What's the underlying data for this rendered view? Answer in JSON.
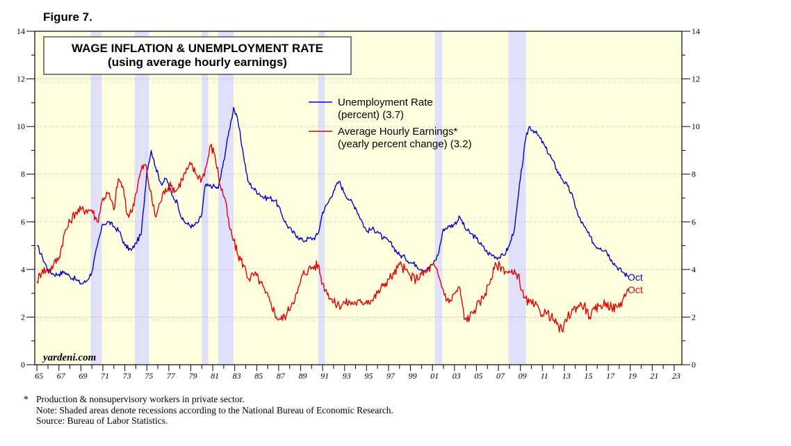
{
  "figure_label": "Figure 7.",
  "colors": {
    "background": "#ffffe0",
    "recession": "#e0e0fb",
    "unemployment": "#0000cc",
    "earnings": "#e60000"
  },
  "footnotes": {
    "asterisk": "*",
    "line1": "Production & nonsupervisory workers in private sector.",
    "line2": "Note: Shaded areas denote recessions according to the National Bureau of Economic Research.",
    "line3": "Source: Bureau of Labor Statistics."
  },
  "chart_data": {
    "type": "line",
    "title": "WAGE INFLATION & UNEMPLOYMENT RATE",
    "subtitle": "(using average hourly earnings)",
    "watermark": "yardeni.com",
    "xlim": [
      1964.8,
      2023.7
    ],
    "ylim": [
      0,
      14
    ],
    "x_ticks": [
      1965,
      1967,
      1969,
      1971,
      1973,
      1975,
      1977,
      1979,
      1981,
      1983,
      1985,
      1987,
      1989,
      1991,
      1993,
      1995,
      1997,
      1999,
      2001,
      2003,
      2005,
      2007,
      2009,
      2011,
      2013,
      2015,
      2017,
      2019,
      2021,
      2023
    ],
    "x_tick_labels": [
      "65",
      "67",
      "69",
      "71",
      "73",
      "75",
      "77",
      "79",
      "81",
      "83",
      "85",
      "87",
      "89",
      "91",
      "93",
      "95",
      "97",
      "99",
      "01",
      "03",
      "05",
      "07",
      "09",
      "11",
      "13",
      "15",
      "17",
      "19",
      "21",
      "23"
    ],
    "y_ticks": [
      0,
      2,
      4,
      6,
      8,
      10,
      12,
      14
    ],
    "y_tick_labels": [
      "0",
      "2",
      "4",
      "6",
      "8",
      "10",
      "12",
      "14"
    ],
    "right_y_tick_labels": [
      "0",
      "2",
      "4",
      "6",
      "8",
      "10",
      "12",
      "14"
    ],
    "recessions": [
      [
        1969.9,
        1970.9
      ],
      [
        1973.9,
        1975.2
      ],
      [
        1980.0,
        1980.6
      ],
      [
        1981.5,
        1982.9
      ],
      [
        1990.6,
        1991.2
      ],
      [
        2001.2,
        2001.9
      ],
      [
        2007.9,
        2009.5
      ]
    ],
    "series": [
      {
        "name": "Unemployment Rate",
        "legend_line1": "Unemployment Rate",
        "legend_line2": "(percent) (3.7)",
        "end_label": "Oct",
        "points": [
          [
            1965.0,
            5.0
          ],
          [
            1965.5,
            4.5
          ],
          [
            1966.0,
            4.0
          ],
          [
            1966.5,
            3.8
          ],
          [
            1967.0,
            3.8
          ],
          [
            1967.5,
            3.9
          ],
          [
            1968.0,
            3.7
          ],
          [
            1968.5,
            3.6
          ],
          [
            1969.0,
            3.4
          ],
          [
            1969.5,
            3.5
          ],
          [
            1970.0,
            3.9
          ],
          [
            1970.5,
            5.0
          ],
          [
            1971.0,
            5.9
          ],
          [
            1971.5,
            6.0
          ],
          [
            1972.0,
            5.8
          ],
          [
            1972.5,
            5.6
          ],
          [
            1973.0,
            5.0
          ],
          [
            1973.6,
            4.8
          ],
          [
            1974.0,
            5.1
          ],
          [
            1974.5,
            5.5
          ],
          [
            1975.0,
            8.1
          ],
          [
            1975.4,
            9.0
          ],
          [
            1975.8,
            8.3
          ],
          [
            1976.3,
            7.6
          ],
          [
            1976.8,
            7.8
          ],
          [
            1977.3,
            7.1
          ],
          [
            1977.8,
            6.8
          ],
          [
            1978.2,
            6.1
          ],
          [
            1978.7,
            5.9
          ],
          [
            1979.2,
            5.8
          ],
          [
            1979.7,
            6.0
          ],
          [
            1980.0,
            6.3
          ],
          [
            1980.3,
            7.5
          ],
          [
            1980.7,
            7.5
          ],
          [
            1981.0,
            7.5
          ],
          [
            1981.5,
            7.4
          ],
          [
            1981.9,
            8.3
          ],
          [
            1982.4,
            9.6
          ],
          [
            1982.9,
            10.8
          ],
          [
            1983.3,
            10.2
          ],
          [
            1983.8,
            8.8
          ],
          [
            1984.2,
            7.7
          ],
          [
            1984.7,
            7.4
          ],
          [
            1985.2,
            7.2
          ],
          [
            1985.7,
            7.0
          ],
          [
            1986.2,
            7.0
          ],
          [
            1986.7,
            6.9
          ],
          [
            1987.2,
            6.4
          ],
          [
            1987.7,
            5.9
          ],
          [
            1988.2,
            5.6
          ],
          [
            1988.7,
            5.4
          ],
          [
            1989.2,
            5.2
          ],
          [
            1989.7,
            5.3
          ],
          [
            1990.2,
            5.3
          ],
          [
            1990.6,
            5.5
          ],
          [
            1991.0,
            6.4
          ],
          [
            1991.5,
            6.8
          ],
          [
            1992.0,
            7.3
          ],
          [
            1992.5,
            7.7
          ],
          [
            1993.0,
            7.2
          ],
          [
            1993.5,
            6.9
          ],
          [
            1994.0,
            6.6
          ],
          [
            1994.5,
            6.1
          ],
          [
            1995.0,
            5.6
          ],
          [
            1995.5,
            5.7
          ],
          [
            1996.0,
            5.6
          ],
          [
            1996.5,
            5.3
          ],
          [
            1997.0,
            5.2
          ],
          [
            1997.5,
            4.9
          ],
          [
            1998.0,
            4.6
          ],
          [
            1998.5,
            4.5
          ],
          [
            1999.0,
            4.3
          ],
          [
            1999.5,
            4.2
          ],
          [
            2000.0,
            4.0
          ],
          [
            2000.5,
            4.0
          ],
          [
            2001.0,
            4.2
          ],
          [
            2001.5,
            4.6
          ],
          [
            2002.0,
            5.7
          ],
          [
            2002.5,
            5.8
          ],
          [
            2003.0,
            5.9
          ],
          [
            2003.5,
            6.2
          ],
          [
            2004.0,
            5.7
          ],
          [
            2004.5,
            5.5
          ],
          [
            2005.0,
            5.3
          ],
          [
            2005.5,
            5.0
          ],
          [
            2006.0,
            4.7
          ],
          [
            2006.5,
            4.6
          ],
          [
            2007.0,
            4.5
          ],
          [
            2007.5,
            4.6
          ],
          [
            2008.0,
            5.0
          ],
          [
            2008.5,
            5.8
          ],
          [
            2009.0,
            7.8
          ],
          [
            2009.5,
            9.5
          ],
          [
            2009.8,
            10.0
          ],
          [
            2010.3,
            9.8
          ],
          [
            2010.8,
            9.5
          ],
          [
            2011.3,
            9.1
          ],
          [
            2011.8,
            8.7
          ],
          [
            2012.3,
            8.2
          ],
          [
            2012.8,
            7.8
          ],
          [
            2013.3,
            7.5
          ],
          [
            2013.8,
            7.0
          ],
          [
            2014.3,
            6.2
          ],
          [
            2014.8,
            5.8
          ],
          [
            2015.3,
            5.4
          ],
          [
            2015.8,
            5.0
          ],
          [
            2016.3,
            4.9
          ],
          [
            2016.8,
            4.8
          ],
          [
            2017.3,
            4.4
          ],
          [
            2017.8,
            4.1
          ],
          [
            2018.3,
            3.9
          ],
          [
            2018.8,
            3.7
          ]
        ]
      },
      {
        "name": "Average Hourly Earnings*",
        "legend_line1": "Average Hourly Earnings*",
        "legend_line2": "(yearly percent change) (3.2)",
        "end_label": "Oct",
        "points": [
          [
            1965.0,
            3.5
          ],
          [
            1965.5,
            4.0
          ],
          [
            1966.0,
            3.9
          ],
          [
            1966.5,
            4.2
          ],
          [
            1967.0,
            4.5
          ],
          [
            1967.5,
            5.5
          ],
          [
            1968.0,
            6.0
          ],
          [
            1968.5,
            6.4
          ],
          [
            1969.0,
            6.5
          ],
          [
            1969.5,
            6.5
          ],
          [
            1970.0,
            6.5
          ],
          [
            1970.5,
            6.0
          ],
          [
            1971.0,
            7.0
          ],
          [
            1971.5,
            7.2
          ],
          [
            1972.0,
            6.5
          ],
          [
            1972.4,
            7.8
          ],
          [
            1972.8,
            7.5
          ],
          [
            1973.2,
            6.3
          ],
          [
            1973.6,
            6.4
          ],
          [
            1974.0,
            7.2
          ],
          [
            1974.5,
            8.2
          ],
          [
            1974.9,
            8.4
          ],
          [
            1975.3,
            7.3
          ],
          [
            1975.8,
            6.2
          ],
          [
            1976.2,
            6.8
          ],
          [
            1976.7,
            7.4
          ],
          [
            1977.2,
            7.5
          ],
          [
            1977.7,
            7.3
          ],
          [
            1978.2,
            7.8
          ],
          [
            1978.7,
            8.2
          ],
          [
            1979.0,
            8.4
          ],
          [
            1979.5,
            8.0
          ],
          [
            1980.0,
            7.8
          ],
          [
            1980.4,
            8.3
          ],
          [
            1980.8,
            9.2
          ],
          [
            1981.2,
            8.8
          ],
          [
            1981.7,
            7.5
          ],
          [
            1982.1,
            7.0
          ],
          [
            1982.5,
            5.8
          ],
          [
            1982.9,
            5.2
          ],
          [
            1983.3,
            4.6
          ],
          [
            1983.8,
            4.2
          ],
          [
            1984.3,
            3.6
          ],
          [
            1984.8,
            3.8
          ],
          [
            1985.3,
            3.5
          ],
          [
            1985.8,
            3.0
          ],
          [
            1986.3,
            2.6
          ],
          [
            1986.8,
            2.0
          ],
          [
            1987.2,
            1.9
          ],
          [
            1987.7,
            2.1
          ],
          [
            1988.2,
            2.6
          ],
          [
            1988.7,
            3.0
          ],
          [
            1989.2,
            3.8
          ],
          [
            1989.7,
            4.0
          ],
          [
            1990.1,
            4.1
          ],
          [
            1990.6,
            4.2
          ],
          [
            1991.0,
            3.4
          ],
          [
            1991.5,
            3.0
          ],
          [
            1992.0,
            2.6
          ],
          [
            1992.5,
            2.5
          ],
          [
            1993.0,
            2.6
          ],
          [
            1993.5,
            2.6
          ],
          [
            1994.0,
            2.6
          ],
          [
            1994.5,
            2.6
          ],
          [
            1995.0,
            2.7
          ],
          [
            1995.5,
            2.7
          ],
          [
            1996.0,
            3.0
          ],
          [
            1996.5,
            3.3
          ],
          [
            1997.0,
            3.6
          ],
          [
            1997.5,
            3.8
          ],
          [
            1998.0,
            4.2
          ],
          [
            1998.5,
            4.0
          ],
          [
            1999.0,
            3.7
          ],
          [
            1999.5,
            3.6
          ],
          [
            2000.0,
            3.8
          ],
          [
            2000.5,
            3.9
          ],
          [
            2001.0,
            4.2
          ],
          [
            2001.5,
            3.8
          ],
          [
            2002.0,
            3.1
          ],
          [
            2002.5,
            2.6
          ],
          [
            2003.0,
            3.0
          ],
          [
            2003.5,
            3.2
          ],
          [
            2003.9,
            1.9
          ],
          [
            2004.4,
            2.0
          ],
          [
            2004.8,
            2.3
          ],
          [
            2005.3,
            2.6
          ],
          [
            2005.8,
            3.0
          ],
          [
            2006.3,
            3.6
          ],
          [
            2006.8,
            4.2
          ],
          [
            2007.3,
            4.1
          ],
          [
            2007.8,
            3.9
          ],
          [
            2008.3,
            3.8
          ],
          [
            2008.8,
            3.8
          ],
          [
            2009.3,
            2.8
          ],
          [
            2009.8,
            2.6
          ],
          [
            2010.3,
            2.5
          ],
          [
            2010.8,
            2.2
          ],
          [
            2011.3,
            2.2
          ],
          [
            2011.8,
            2.0
          ],
          [
            2012.3,
            1.7
          ],
          [
            2012.8,
            1.4
          ],
          [
            2013.3,
            2.0
          ],
          [
            2013.8,
            2.3
          ],
          [
            2014.3,
            2.5
          ],
          [
            2014.8,
            2.5
          ],
          [
            2015.3,
            2.0
          ],
          [
            2015.8,
            2.3
          ],
          [
            2016.3,
            2.5
          ],
          [
            2016.8,
            2.6
          ],
          [
            2017.3,
            2.4
          ],
          [
            2017.8,
            2.4
          ],
          [
            2018.3,
            2.7
          ],
          [
            2018.8,
            3.2
          ]
        ]
      }
    ]
  }
}
